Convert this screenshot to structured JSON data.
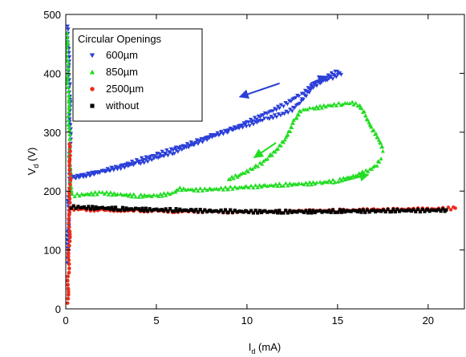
{
  "chart_data": {
    "type": "scatter",
    "title": "",
    "xlabel": {
      "main": "I",
      "sub": "d",
      "unit": " (mA)"
    },
    "ylabel": {
      "main": "V",
      "sub": "d",
      "unit": " (V)"
    },
    "xlim": [
      0,
      22
    ],
    "ylim": [
      0,
      500
    ],
    "x_ticks": [
      "0",
      "5",
      "10",
      "15",
      "20"
    ],
    "y_ticks": [
      "0",
      "100",
      "200",
      "300",
      "400",
      "500"
    ],
    "grid": false,
    "legend": {
      "title": "Circular Openings",
      "placement": "top-left",
      "entries": [
        "600µm",
        "850µm",
        "2500µm",
        "without"
      ]
    },
    "series": [
      {
        "name": "600µm",
        "marker": "triangle-down",
        "color": "#2a3ed8",
        "paths": [
          [
            [
              0.1,
              80
            ],
            [
              0.15,
              150
            ],
            [
              0.2,
              230
            ],
            [
              0.25,
              300
            ],
            [
              0.2,
              380
            ],
            [
              0.15,
              440
            ],
            [
              0.1,
              480
            ]
          ],
          [
            [
              0.3,
              222
            ],
            [
              1,
              227
            ],
            [
              2,
              233
            ],
            [
              3,
              240
            ],
            [
              4,
              247
            ],
            [
              5,
              256
            ],
            [
              6,
              266
            ],
            [
              7,
              278
            ],
            [
              8,
              291
            ],
            [
              9,
              303
            ],
            [
              10,
              317
            ],
            [
              11,
              331
            ],
            [
              12,
              346
            ],
            [
              13,
              365
            ],
            [
              14,
              388
            ],
            [
              15,
              403
            ]
          ],
          [
            [
              15.2,
              400
            ],
            [
              15,
              397
            ],
            [
              14.5,
              390
            ],
            [
              14,
              385
            ],
            [
              13.5,
              372
            ],
            [
              13,
              352
            ],
            [
              12.5,
              338
            ],
            [
              12,
              331
            ],
            [
              11,
              322
            ],
            [
              10,
              312
            ],
            [
              9,
              303
            ],
            [
              8,
              294
            ],
            [
              7,
              282
            ],
            [
              6,
              272
            ],
            [
              5,
              262
            ],
            [
              4,
              252
            ],
            [
              3,
              242
            ],
            [
              2,
              233
            ],
            [
              1,
              226
            ],
            [
              0.3,
              223
            ]
          ]
        ],
        "arrows": [
          {
            "from": [
              11.8,
              383
            ],
            "to": [
              9.6,
              360
            ]
          },
          {
            "from": [
              13.5,
              383
            ],
            "to": [
              14.4,
              395
            ]
          }
        ]
      },
      {
        "name": "850µm",
        "marker": "triangle-up",
        "color": "#22dd22",
        "paths": [
          [
            [
              0.05,
              470
            ],
            [
              0.1,
              420
            ],
            [
              0.15,
              350
            ],
            [
              0.2,
              280
            ],
            [
              0.25,
              230
            ],
            [
              0.3,
              205
            ],
            [
              0.35,
              195
            ]
          ],
          [
            [
              0.5,
              193
            ],
            [
              2,
              197
            ],
            [
              3,
              194
            ],
            [
              4,
              192
            ],
            [
              5,
              192
            ],
            [
              6,
              197
            ],
            [
              6.2,
              204
            ],
            [
              7,
              202
            ],
            [
              8,
              203
            ],
            [
              9,
              205
            ],
            [
              10,
              207
            ],
            [
              11,
              209
            ],
            [
              12,
              211
            ],
            [
              13,
              212
            ],
            [
              14,
              214
            ],
            [
              15,
              218
            ],
            [
              16,
              226
            ],
            [
              16.8,
              236
            ],
            [
              17.2,
              245
            ],
            [
              17.4,
              255
            ]
          ],
          [
            [
              17.5,
              270
            ],
            [
              17.2,
              290
            ],
            [
              16.8,
              310
            ],
            [
              16.5,
              330
            ],
            [
              16.2,
              345
            ],
            [
              15.8,
              350
            ],
            [
              15.2,
              348
            ],
            [
              14.5,
              345
            ],
            [
              13.5,
              340
            ],
            [
              13,
              337
            ],
            [
              12.6,
              320
            ],
            [
              12.3,
              300
            ],
            [
              12,
              285
            ],
            [
              11.6,
              270
            ],
            [
              11.2,
              258
            ],
            [
              10.8,
              248
            ],
            [
              10.4,
              240
            ],
            [
              10,
              233
            ],
            [
              9.5,
              226
            ],
            [
              9,
              220
            ]
          ]
        ],
        "arrows": [
          {
            "from": [
              11.6,
              282
            ],
            "to": [
              10.4,
              257
            ]
          },
          {
            "from": [
              14.7,
              212
            ],
            "to": [
              16.7,
              228
            ]
          }
        ]
      },
      {
        "name": "2500µm",
        "marker": "circle",
        "color": "#ee2b1a",
        "paths": [
          [
            [
              0.1,
              12
            ],
            [
              0.15,
              60
            ],
            [
              0.2,
              120
            ],
            [
              0.2,
              175
            ],
            [
              0.25,
              220
            ],
            [
              0.2,
              280
            ]
          ],
          [
            [
              0.2,
              170
            ],
            [
              1,
              169
            ],
            [
              2,
              168
            ],
            [
              3,
              168
            ],
            [
              4,
              167
            ],
            [
              5,
              167
            ],
            [
              6,
              166
            ],
            [
              7,
              166
            ],
            [
              8,
              166
            ],
            [
              9,
              165
            ],
            [
              10,
              165
            ],
            [
              11,
              165
            ],
            [
              12,
              165
            ],
            [
              13,
              166
            ],
            [
              14,
              166
            ],
            [
              15,
              167
            ],
            [
              16,
              167
            ],
            [
              17,
              168
            ],
            [
              18,
              168
            ],
            [
              19,
              169
            ],
            [
              20,
              169
            ],
            [
              21,
              170
            ],
            [
              21.5,
              171
            ]
          ]
        ],
        "arrows": []
      },
      {
        "name": "without",
        "marker": "square",
        "color": "#000000",
        "paths": [
          [
            [
              0.3,
              173
            ],
            [
              1,
              172
            ],
            [
              2,
              171
            ],
            [
              3,
              170
            ],
            [
              4,
              169
            ],
            [
              5,
              168
            ],
            [
              6,
              168
            ],
            [
              7,
              167
            ],
            [
              8,
              166
            ],
            [
              9,
              166
            ],
            [
              10,
              165
            ],
            [
              11,
              165
            ],
            [
              12,
              165
            ],
            [
              13,
              165
            ],
            [
              14,
              165
            ],
            [
              15,
              166
            ],
            [
              16,
              166
            ],
            [
              17,
              166
            ],
            [
              18,
              167
            ],
            [
              19,
              167
            ],
            [
              20,
              167
            ],
            [
              21,
              168
            ]
          ]
        ],
        "arrows": []
      }
    ]
  }
}
